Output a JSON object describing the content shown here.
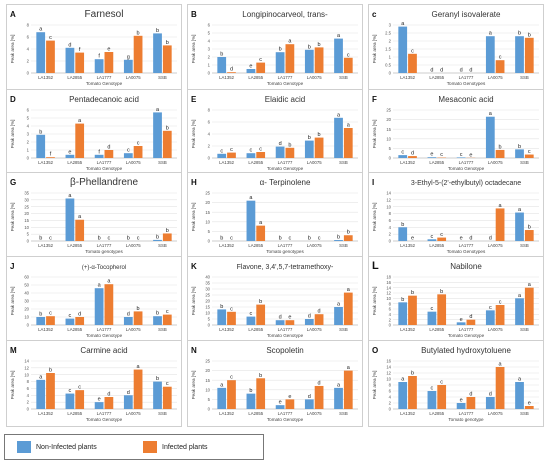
{
  "figure": {
    "colors": {
      "non": "#5b9bd5",
      "inf": "#ed7d31"
    },
    "legend": [
      {
        "name": "Non-Infected plants",
        "color": "#5b9bd5"
      },
      {
        "name": "Infected plants",
        "color": "#ed7d31"
      }
    ]
  },
  "chart_data": [
    {
      "type": "bar",
      "panel_letter": "A",
      "title": "Farnesol",
      "xlabel": "Tomato Genotype",
      "ylabel": "Peak area [%]",
      "ylim": [
        0,
        8
      ],
      "yticks": [
        0,
        2,
        4,
        6,
        8
      ],
      "categories": [
        "LA1352",
        "LA2855",
        "LA1777",
        "LA0075",
        "SSB"
      ],
      "series": [
        {
          "name": "Non-Infected plants",
          "values": [
            6.8,
            4.2,
            2.3,
            2.2,
            6.6
          ]
        },
        {
          "name": "Infected plants",
          "values": [
            5.4,
            3.4,
            3.5,
            6.2,
            4.6
          ]
        }
      ],
      "letters": [
        [
          "a",
          "c"
        ],
        [
          "d",
          "f"
        ],
        [
          "f",
          "e"
        ],
        [
          "g",
          "b"
        ],
        [
          "b",
          "b"
        ]
      ]
    },
    {
      "type": "bar",
      "panel_letter": "B",
      "title": "Longipinocarveol, trans-",
      "xlabel": "Tomato Genotype",
      "ylabel": "Peak area [%]",
      "ylim": [
        0,
        6
      ],
      "yticks": [
        0,
        1,
        2,
        3,
        4,
        5,
        6
      ],
      "categories": [
        "LA1352",
        "LA2855",
        "LA1777",
        "LA0075",
        "SSB"
      ],
      "series": [
        {
          "name": "Non-Infected plants",
          "values": [
            2.0,
            0.5,
            2.6,
            2.9,
            4.3
          ]
        },
        {
          "name": "Infected plants",
          "values": [
            0.1,
            1.3,
            3.6,
            3.2,
            1.9
          ]
        }
      ],
      "letters": [
        [
          "b",
          "d"
        ],
        [
          "e",
          "c"
        ],
        [
          "b",
          "a"
        ],
        [
          "b",
          "b"
        ],
        [
          "a",
          "c"
        ]
      ]
    },
    {
      "type": "bar",
      "panel_letter": "c",
      "title": "Geranyl isovalerate",
      "xlabel": "Tomato Genotypes",
      "ylabel": "Peak area [%]",
      "ylim": [
        0,
        3
      ],
      "yticks": [
        0,
        0.5,
        1,
        1.5,
        2,
        2.5,
        3
      ],
      "categories": [
        "LA1352",
        "LA2855",
        "LA1777",
        "LA0075",
        "SSB"
      ],
      "series": [
        {
          "name": "Non-Infected plants",
          "values": [
            2.9,
            0,
            0,
            2.3,
            2.3
          ]
        },
        {
          "name": "Infected plants",
          "values": [
            1.2,
            0,
            0,
            0.8,
            2.2
          ]
        }
      ],
      "letters": [
        [
          "a",
          "c"
        ],
        [
          "d",
          "d"
        ],
        [
          "d",
          "d"
        ],
        [
          "a",
          "c"
        ],
        [
          "b",
          "b"
        ]
      ]
    },
    {
      "type": "bar",
      "panel_letter": "D",
      "title": "Pentadecanoic acid",
      "xlabel": "Tomato Genotype",
      "ylabel": "Peak area [%]",
      "ylim": [
        0,
        6
      ],
      "yticks": [
        0,
        1,
        2,
        3,
        4,
        5,
        6
      ],
      "categories": [
        "LA1352",
        "LA2855",
        "LA1777",
        "LA0075",
        "SSB"
      ],
      "series": [
        {
          "name": "Non-Infected plants",
          "values": [
            2.9,
            0.4,
            0.4,
            0.6,
            5.7
          ]
        },
        {
          "name": "Infected plants",
          "values": [
            0.1,
            4.3,
            1.0,
            1.5,
            3.4
          ]
        }
      ],
      "letters": [
        [
          "b",
          "f"
        ],
        [
          "e",
          "a"
        ],
        [
          "f",
          "d"
        ],
        [
          "c",
          "c"
        ],
        [
          "a",
          "b"
        ]
      ]
    },
    {
      "type": "bar",
      "panel_letter": "E",
      "title": "Elaidic acid",
      "xlabel": "Tomato Genotype",
      "ylabel": "Peak area [%]",
      "ylim": [
        0,
        8
      ],
      "yticks": [
        0,
        2,
        4,
        6,
        8
      ],
      "categories": [
        "LA1352",
        "LA2855",
        "LA1777",
        "LA0075",
        "SSB"
      ],
      "series": [
        {
          "name": "Non-Infected plants",
          "values": [
            0.7,
            0.8,
            1.9,
            2.9,
            6.7
          ]
        },
        {
          "name": "Infected plants",
          "values": [
            0.9,
            1.0,
            1.7,
            3.4,
            5.0
          ]
        }
      ],
      "letters": [
        [
          "c",
          "c"
        ],
        [
          "c",
          "c"
        ],
        [
          "d",
          "b"
        ],
        [
          "b",
          "b"
        ],
        [
          "a",
          "a"
        ]
      ]
    },
    {
      "type": "bar",
      "panel_letter": "F",
      "title": "Mesaconic acid",
      "xlabel": "Tomato Genotype",
      "ylabel": "Peak area [%]",
      "ylim": [
        0,
        25
      ],
      "yticks": [
        0,
        5,
        10,
        15,
        20,
        25
      ],
      "categories": [
        "LA1352",
        "LA2855",
        "LA1777",
        "LA0075",
        "SSB"
      ],
      "series": [
        {
          "name": "Non-Infected plants",
          "values": [
            1.5,
            0.4,
            0.3,
            21.5,
            4.5
          ]
        },
        {
          "name": "Infected plants",
          "values": [
            1.0,
            0.2,
            0.1,
            4.2,
            1.8
          ]
        }
      ],
      "letters": [
        [
          "c",
          "d"
        ],
        [
          "e",
          "c"
        ],
        [
          "c",
          "e"
        ],
        [
          "a",
          "b"
        ],
        [
          "b",
          "c"
        ]
      ]
    },
    {
      "type": "bar",
      "panel_letter": "G",
      "title": "β-Phellandrene",
      "xlabel": "Tomato genotypes",
      "ylabel": "Peak area [%]",
      "ylim": [
        0,
        35
      ],
      "yticks": [
        0,
        5,
        10,
        15,
        20,
        25,
        30,
        35
      ],
      "categories": [
        "LA1352",
        "LA2855",
        "LA1777",
        "LA0075",
        "SSB"
      ],
      "series": [
        {
          "name": "Non-Infected plants",
          "values": [
            0,
            31,
            0,
            0,
            0.8
          ]
        },
        {
          "name": "Infected plants",
          "values": [
            0,
            15.5,
            0,
            0,
            5.5
          ]
        }
      ],
      "letters": [
        [
          "b",
          "c"
        ],
        [
          "a",
          "a"
        ],
        [
          "b",
          "c"
        ],
        [
          "b",
          "c"
        ],
        [
          "b",
          "b"
        ]
      ]
    },
    {
      "type": "bar",
      "panel_letter": "H",
      "title": "α- Terpinolene",
      "xlabel": "Tomato genotypes",
      "ylabel": "Peak area [%]",
      "ylim": [
        0,
        25
      ],
      "yticks": [
        0,
        5,
        10,
        15,
        20,
        25
      ],
      "categories": [
        "LA1352",
        "LA2855",
        "LA1777",
        "LA0075",
        "SSB"
      ],
      "series": [
        {
          "name": "Non-Infected plants",
          "values": [
            0,
            21,
            0,
            0,
            0.5
          ]
        },
        {
          "name": "Infected plants",
          "values": [
            0,
            8,
            0,
            0,
            3
          ]
        }
      ],
      "letters": [
        [
          "b",
          "c"
        ],
        [
          "a",
          "a"
        ],
        [
          "b",
          "c"
        ],
        [
          "b",
          "c"
        ],
        [
          "b",
          "b"
        ]
      ]
    },
    {
      "type": "bar",
      "panel_letter": "I",
      "title": "3-Ethyl-5-(2'-ethylbutyl) octadecane",
      "xlabel": "Tomato Genotypes",
      "ylabel": "Peak area [%]",
      "ylim": [
        0,
        14
      ],
      "yticks": [
        0,
        2,
        4,
        6,
        8,
        10,
        12,
        14
      ],
      "categories": [
        "LA1352",
        "LA2855",
        "LA1777",
        "LA0075",
        "SSB"
      ],
      "series": [
        {
          "name": "Non-Infected plants",
          "values": [
            4.0,
            0.5,
            0,
            0,
            8.3
          ]
        },
        {
          "name": "Infected plants",
          "values": [
            0,
            1.0,
            0,
            9.5,
            3.2
          ]
        }
      ],
      "letters": [
        [
          "b",
          "e"
        ],
        [
          "c",
          "c"
        ],
        [
          "e",
          "d"
        ],
        [
          "d",
          "a"
        ],
        [
          "a",
          "b"
        ]
      ]
    },
    {
      "type": "bar",
      "panel_letter": "J",
      "title": "(+)-α-Tocopherol",
      "xlabel": "Tomato Genotype",
      "ylabel": "Peak area [%]",
      "ylim": [
        0,
        60
      ],
      "yticks": [
        0,
        10,
        20,
        30,
        40,
        50,
        60
      ],
      "categories": [
        "LA1352",
        "LA2855",
        "LA1777",
        "LA0075",
        "SSB"
      ],
      "series": [
        {
          "name": "Non-Infected plants",
          "values": [
            10,
            8,
            46,
            10,
            11
          ]
        },
        {
          "name": "Infected plants",
          "values": [
            11,
            10,
            51,
            17,
            13
          ]
        }
      ],
      "letters": [
        [
          "b",
          "c"
        ],
        [
          "c",
          "d"
        ],
        [
          "a",
          "a"
        ],
        [
          "d",
          "b"
        ],
        [
          "b",
          "c"
        ]
      ]
    },
    {
      "type": "bar",
      "panel_letter": "K",
      "title": "Flavone, 3,4',5,7-tetramethoxy-",
      "xlabel": "Tomato Genotype",
      "ylabel": "Peak area [%]",
      "ylim": [
        0,
        40
      ],
      "yticks": [
        0,
        5,
        10,
        15,
        20,
        25,
        30,
        35,
        40
      ],
      "categories": [
        "LA1352",
        "LA2855",
        "LA1777",
        "LA0075",
        "SSB"
      ],
      "series": [
        {
          "name": "Non-Infected plants",
          "values": [
            13,
            7,
            4,
            5,
            15
          ]
        },
        {
          "name": "Infected plants",
          "values": [
            11,
            17,
            4,
            9,
            27
          ]
        }
      ],
      "letters": [
        [
          "b",
          "c"
        ],
        [
          "c",
          "b"
        ],
        [
          "d",
          "e"
        ],
        [
          "d",
          "d"
        ],
        [
          "a",
          "a"
        ]
      ]
    },
    {
      "type": "bar",
      "panel_letter": "L",
      "title": "Nabilone",
      "xlabel": "Tomato Genotype",
      "ylabel": "Peak area [%]",
      "ylim": [
        0,
        18
      ],
      "yticks": [
        0,
        2,
        4,
        6,
        8,
        10,
        12,
        14,
        16,
        18
      ],
      "categories": [
        "LA1352",
        "LA2855",
        "LA1777",
        "LA0075",
        "SSB"
      ],
      "series": [
        {
          "name": "Non-Infected plants",
          "values": [
            8.5,
            5.0,
            1.0,
            5.5,
            10.0
          ]
        },
        {
          "name": "Infected plants",
          "values": [
            11.0,
            11.5,
            2.0,
            7.5,
            14.0
          ]
        }
      ],
      "letters": [
        [
          "b",
          "b"
        ],
        [
          "c",
          "b"
        ],
        [
          "e",
          "d"
        ],
        [
          "c",
          "c"
        ],
        [
          "a",
          "a"
        ]
      ]
    },
    {
      "type": "bar",
      "panel_letter": "M",
      "title": "Carmine acid",
      "xlabel": "Tomato Genotype",
      "ylabel": "Peak area [%]",
      "ylim": [
        0,
        14
      ],
      "yticks": [
        0,
        2,
        4,
        6,
        8,
        10,
        12,
        14
      ],
      "categories": [
        "LA1352",
        "LA2855",
        "LA1777",
        "LA0075",
        "SSB"
      ],
      "series": [
        {
          "name": "Non-Infected plants",
          "values": [
            8.5,
            4.5,
            2.0,
            4.0,
            8.0
          ]
        },
        {
          "name": "Infected plants",
          "values": [
            10.5,
            5.5,
            3.5,
            11.5,
            6.5
          ]
        }
      ],
      "letters": [
        [
          "a",
          "b"
        ],
        [
          "c",
          "c"
        ],
        [
          "e",
          "d"
        ],
        [
          "d",
          "a"
        ],
        [
          "b",
          "c"
        ]
      ]
    },
    {
      "type": "bar",
      "panel_letter": "N",
      "title": "Scopoletin",
      "xlabel": "Tomato Genotype",
      "ylabel": "Peak area [%]",
      "ylim": [
        0,
        25
      ],
      "yticks": [
        0,
        5,
        10,
        15,
        20,
        25
      ],
      "categories": [
        "LA1352",
        "LA2855",
        "LA1777",
        "LA0075",
        "SSB"
      ],
      "series": [
        {
          "name": "Non-Infected plants",
          "values": [
            11,
            8,
            2,
            5,
            11
          ]
        },
        {
          "name": "Infected plants",
          "values": [
            15,
            16,
            5,
            12,
            20
          ]
        }
      ],
      "letters": [
        [
          "a",
          "c"
        ],
        [
          "b",
          "b"
        ],
        [
          "e",
          "e"
        ],
        [
          "d",
          "d"
        ],
        [
          "a",
          "a"
        ]
      ]
    },
    {
      "type": "bar",
      "panel_letter": "O",
      "title": "Butylated hydroxytoluene",
      "xlabel": "Tomato genotype",
      "ylabel": "Peak area [%]",
      "ylim": [
        0,
        16
      ],
      "yticks": [
        0,
        2,
        4,
        6,
        8,
        10,
        12,
        14,
        16
      ],
      "categories": [
        "LA1352",
        "LA2855",
        "LA1777",
        "LA0075",
        "SSB"
      ],
      "series": [
        {
          "name": "Non-Infected plants",
          "values": [
            9,
            6,
            2,
            4,
            9
          ]
        },
        {
          "name": "Infected plants",
          "values": [
            11,
            8,
            4,
            14,
            1
          ]
        }
      ],
      "letters": [
        [
          "a",
          "b"
        ],
        [
          "c",
          "c"
        ],
        [
          "e",
          "d"
        ],
        [
          "d",
          "a"
        ],
        [
          "a",
          "e"
        ]
      ]
    }
  ]
}
